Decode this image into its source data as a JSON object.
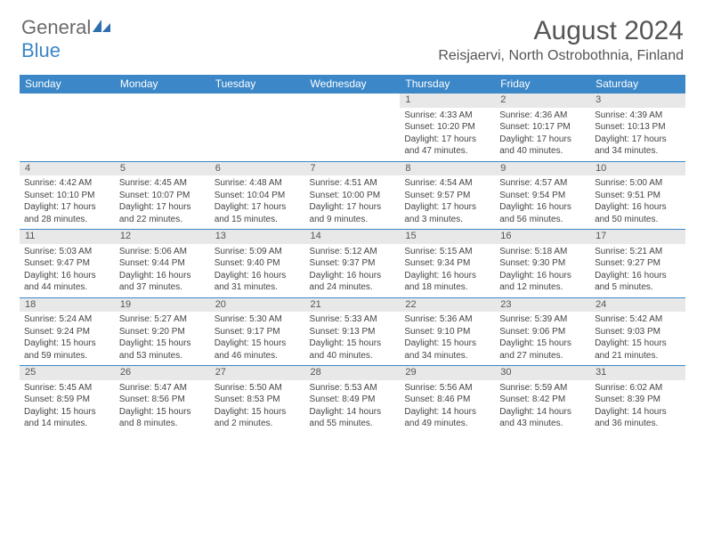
{
  "logo": {
    "text1": "General",
    "text2": "Blue"
  },
  "title": "August 2024",
  "location": "Reisjaervi, North Ostrobothnia, Finland",
  "colors": {
    "header_bg": "#3b87c8",
    "daynum_bg": "#e8e8e8",
    "text": "#444444",
    "title_text": "#555555"
  },
  "day_headers": [
    "Sunday",
    "Monday",
    "Tuesday",
    "Wednesday",
    "Thursday",
    "Friday",
    "Saturday"
  ],
  "weeks": [
    [
      null,
      null,
      null,
      null,
      {
        "n": "1",
        "sr": "4:33 AM",
        "ss": "10:20 PM",
        "dl": "17 hours and 47 minutes."
      },
      {
        "n": "2",
        "sr": "4:36 AM",
        "ss": "10:17 PM",
        "dl": "17 hours and 40 minutes."
      },
      {
        "n": "3",
        "sr": "4:39 AM",
        "ss": "10:13 PM",
        "dl": "17 hours and 34 minutes."
      }
    ],
    [
      {
        "n": "4",
        "sr": "4:42 AM",
        "ss": "10:10 PM",
        "dl": "17 hours and 28 minutes."
      },
      {
        "n": "5",
        "sr": "4:45 AM",
        "ss": "10:07 PM",
        "dl": "17 hours and 22 minutes."
      },
      {
        "n": "6",
        "sr": "4:48 AM",
        "ss": "10:04 PM",
        "dl": "17 hours and 15 minutes."
      },
      {
        "n": "7",
        "sr": "4:51 AM",
        "ss": "10:00 PM",
        "dl": "17 hours and 9 minutes."
      },
      {
        "n": "8",
        "sr": "4:54 AM",
        "ss": "9:57 PM",
        "dl": "17 hours and 3 minutes."
      },
      {
        "n": "9",
        "sr": "4:57 AM",
        "ss": "9:54 PM",
        "dl": "16 hours and 56 minutes."
      },
      {
        "n": "10",
        "sr": "5:00 AM",
        "ss": "9:51 PM",
        "dl": "16 hours and 50 minutes."
      }
    ],
    [
      {
        "n": "11",
        "sr": "5:03 AM",
        "ss": "9:47 PM",
        "dl": "16 hours and 44 minutes."
      },
      {
        "n": "12",
        "sr": "5:06 AM",
        "ss": "9:44 PM",
        "dl": "16 hours and 37 minutes."
      },
      {
        "n": "13",
        "sr": "5:09 AM",
        "ss": "9:40 PM",
        "dl": "16 hours and 31 minutes."
      },
      {
        "n": "14",
        "sr": "5:12 AM",
        "ss": "9:37 PM",
        "dl": "16 hours and 24 minutes."
      },
      {
        "n": "15",
        "sr": "5:15 AM",
        "ss": "9:34 PM",
        "dl": "16 hours and 18 minutes."
      },
      {
        "n": "16",
        "sr": "5:18 AM",
        "ss": "9:30 PM",
        "dl": "16 hours and 12 minutes."
      },
      {
        "n": "17",
        "sr": "5:21 AM",
        "ss": "9:27 PM",
        "dl": "16 hours and 5 minutes."
      }
    ],
    [
      {
        "n": "18",
        "sr": "5:24 AM",
        "ss": "9:24 PM",
        "dl": "15 hours and 59 minutes."
      },
      {
        "n": "19",
        "sr": "5:27 AM",
        "ss": "9:20 PM",
        "dl": "15 hours and 53 minutes."
      },
      {
        "n": "20",
        "sr": "5:30 AM",
        "ss": "9:17 PM",
        "dl": "15 hours and 46 minutes."
      },
      {
        "n": "21",
        "sr": "5:33 AM",
        "ss": "9:13 PM",
        "dl": "15 hours and 40 minutes."
      },
      {
        "n": "22",
        "sr": "5:36 AM",
        "ss": "9:10 PM",
        "dl": "15 hours and 34 minutes."
      },
      {
        "n": "23",
        "sr": "5:39 AM",
        "ss": "9:06 PM",
        "dl": "15 hours and 27 minutes."
      },
      {
        "n": "24",
        "sr": "5:42 AM",
        "ss": "9:03 PM",
        "dl": "15 hours and 21 minutes."
      }
    ],
    [
      {
        "n": "25",
        "sr": "5:45 AM",
        "ss": "8:59 PM",
        "dl": "15 hours and 14 minutes."
      },
      {
        "n": "26",
        "sr": "5:47 AM",
        "ss": "8:56 PM",
        "dl": "15 hours and 8 minutes."
      },
      {
        "n": "27",
        "sr": "5:50 AM",
        "ss": "8:53 PM",
        "dl": "15 hours and 2 minutes."
      },
      {
        "n": "28",
        "sr": "5:53 AM",
        "ss": "8:49 PM",
        "dl": "14 hours and 55 minutes."
      },
      {
        "n": "29",
        "sr": "5:56 AM",
        "ss": "8:46 PM",
        "dl": "14 hours and 49 minutes."
      },
      {
        "n": "30",
        "sr": "5:59 AM",
        "ss": "8:42 PM",
        "dl": "14 hours and 43 minutes."
      },
      {
        "n": "31",
        "sr": "6:02 AM",
        "ss": "8:39 PM",
        "dl": "14 hours and 36 minutes."
      }
    ]
  ],
  "labels": {
    "sunrise": "Sunrise: ",
    "sunset": "Sunset: ",
    "daylight": "Daylight: "
  }
}
